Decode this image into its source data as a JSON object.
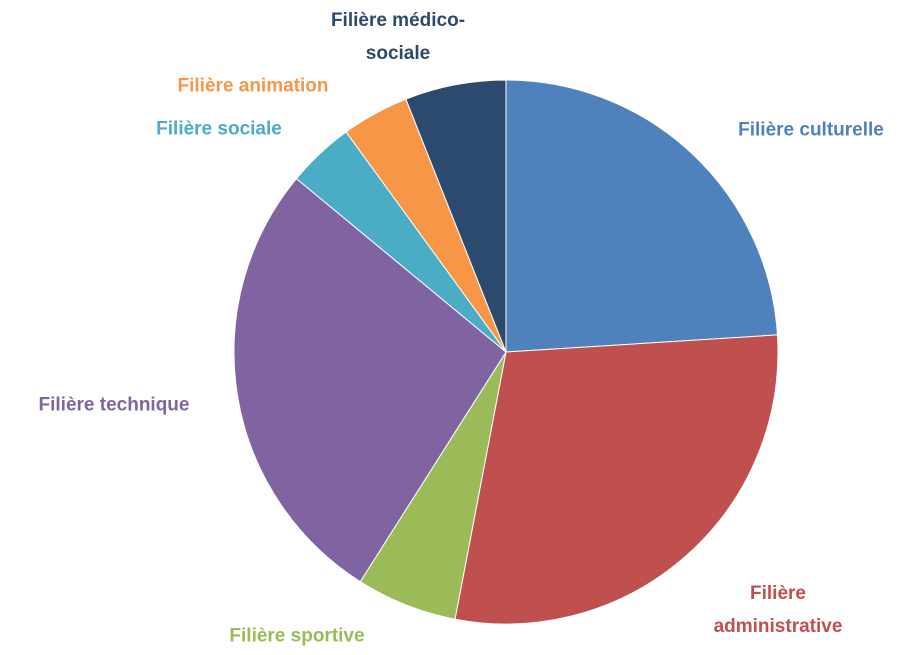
{
  "chart_data": {
    "type": "pie",
    "categories": [
      "Filière culturelle",
      "Filière administrative",
      "Filière sportive",
      "Filière technique",
      "Filière sociale",
      "Filière animation",
      "Filière médico-sociale"
    ],
    "values": [
      24,
      29,
      6,
      27,
      4,
      4,
      6
    ],
    "colors": [
      "#4f81bd",
      "#c0504d",
      "#9bbb59",
      "#8064a2",
      "#4bacc6",
      "#f79646",
      "#2c4a6e"
    ]
  }
}
